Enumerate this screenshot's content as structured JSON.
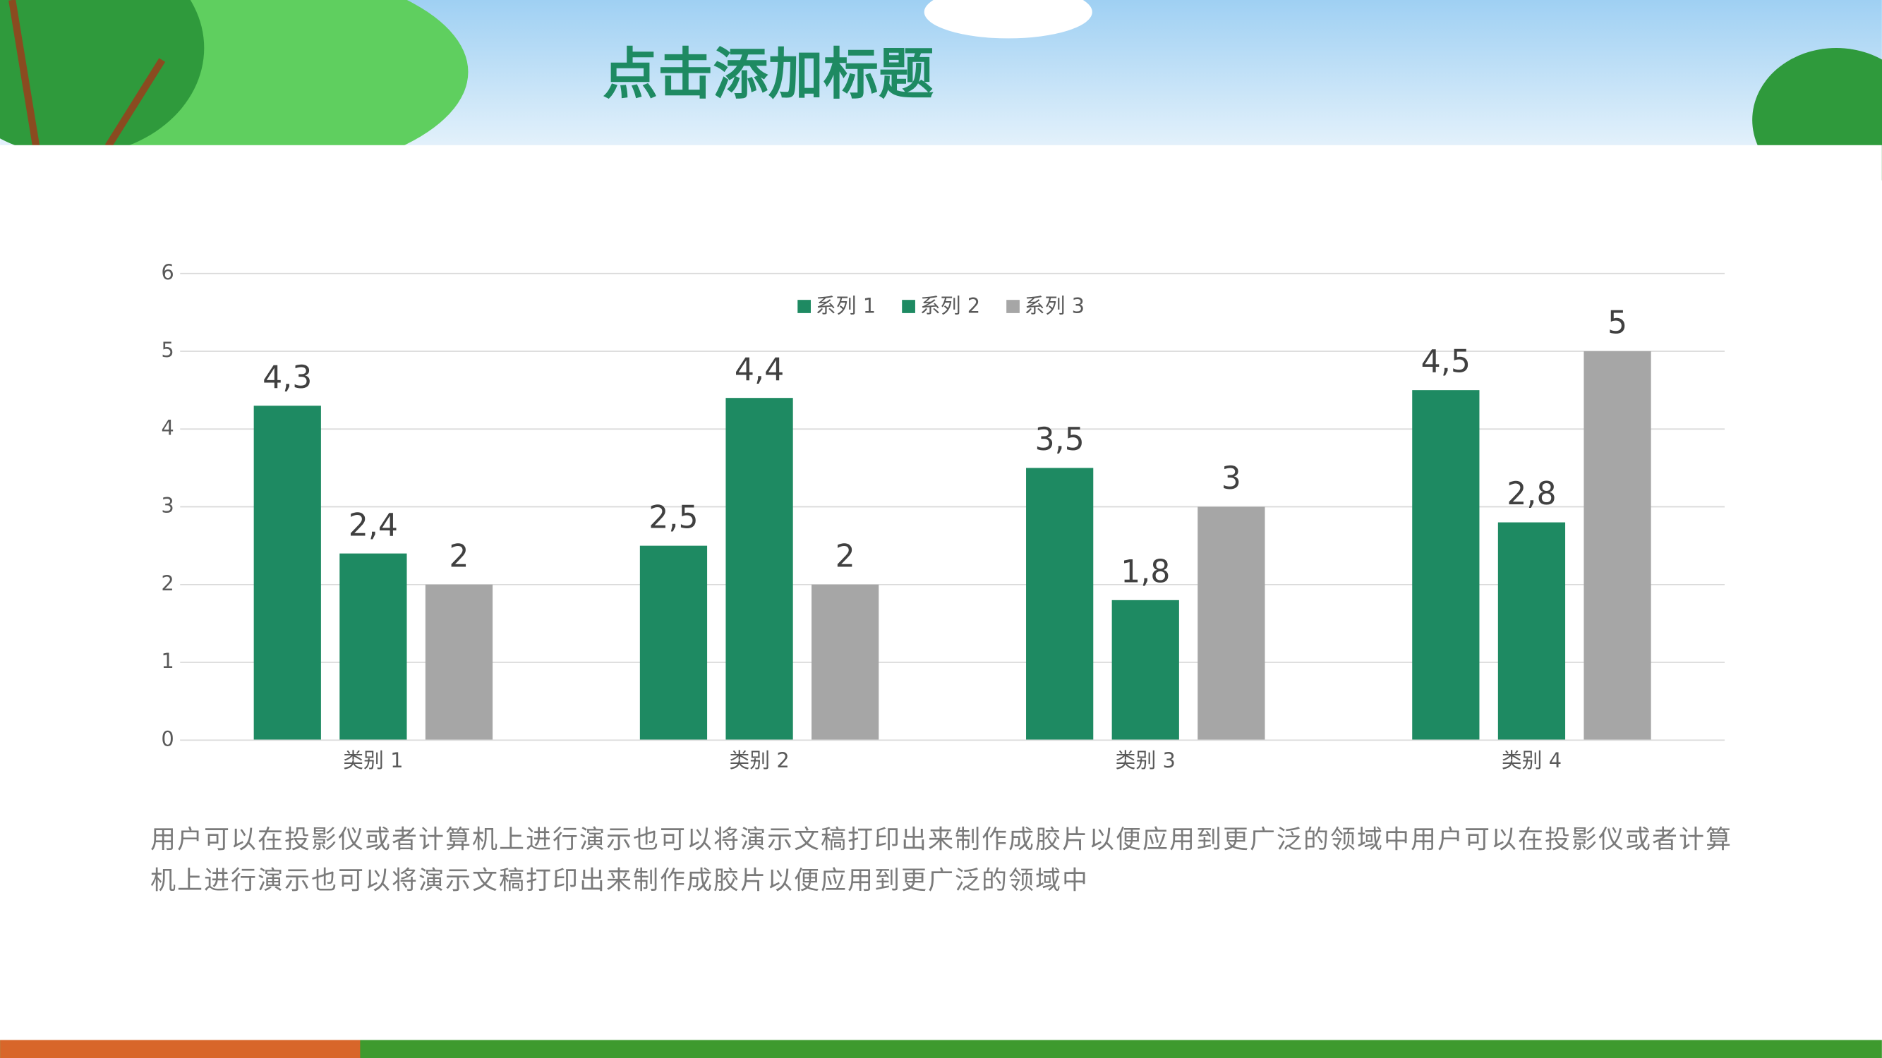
{
  "title": "点击添加标题",
  "chart_data": {
    "type": "bar",
    "categories": [
      "类别 1",
      "类别 2",
      "类别 3",
      "类别 4"
    ],
    "series": [
      {
        "name": "系列 1",
        "color": "#1e8a62",
        "values": [
          4.3,
          2.5,
          3.5,
          4.5
        ],
        "value_labels": [
          "4,3",
          "2,5",
          "3,5",
          "4,5"
        ]
      },
      {
        "name": "系列 2",
        "color": "#1e8a62",
        "values": [
          2.4,
          4.4,
          1.8,
          2.8
        ],
        "value_labels": [
          "2,4",
          "4,4",
          "1,8",
          "2,8"
        ]
      },
      {
        "name": "系列 3",
        "color": "#a6a6a6",
        "values": [
          2,
          2,
          3,
          5
        ],
        "value_labels": [
          "2",
          "2",
          "3",
          "5"
        ]
      }
    ],
    "ylim": [
      0,
      6
    ],
    "yticks": [
      0,
      1,
      2,
      3,
      4,
      5,
      6
    ],
    "grid": true,
    "legend": "top"
  },
  "body_text": "用户可以在投影仪或者计算机上进行演示也可以将演示文稿打印出来制作成胶片以便应用到更广泛的领域中用户可以在投影仪或者计算机上进行演示也可以将演示文稿打印出来制作成胶片以便应用到更广泛的领域中"
}
